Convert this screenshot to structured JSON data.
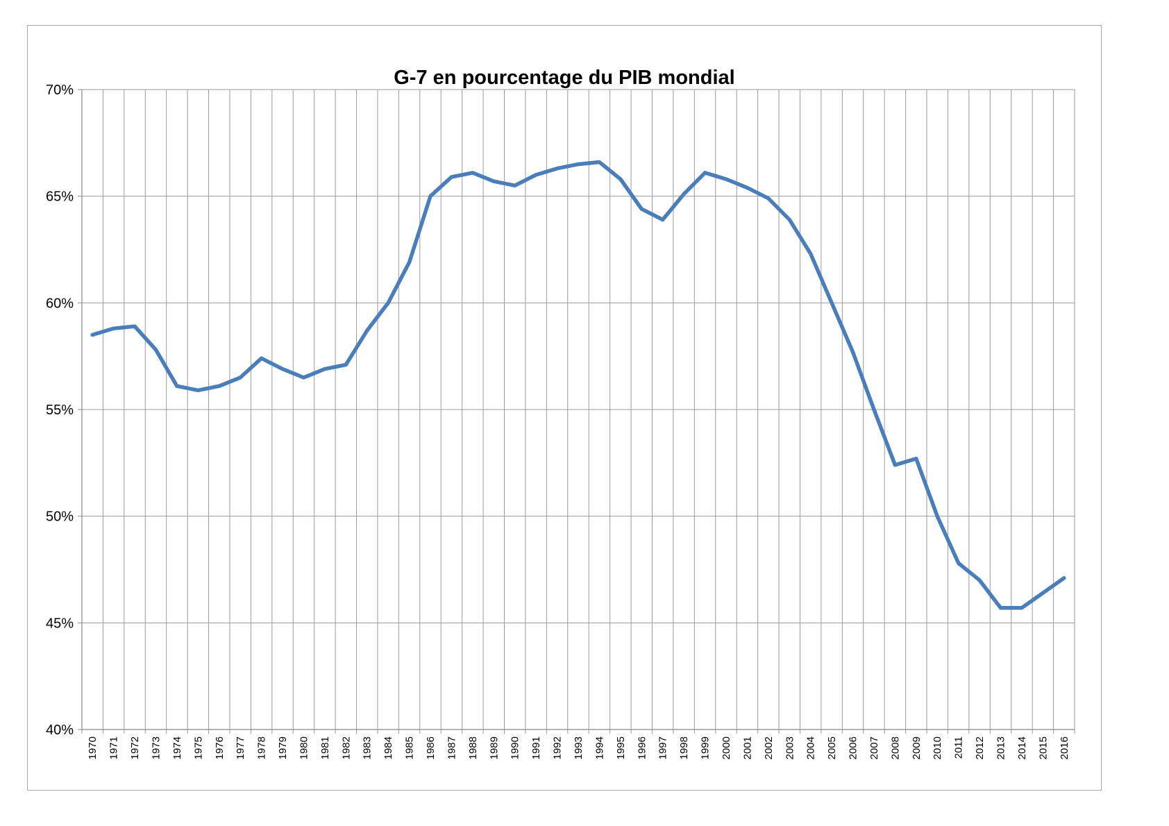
{
  "chart_data": {
    "type": "line",
    "title": "G-7 en pourcentage du PIB mondial",
    "xlabel": "",
    "ylabel": "",
    "ylim": [
      40,
      70
    ],
    "yticks": [
      40,
      45,
      50,
      55,
      60,
      65,
      70
    ],
    "ytick_labels": [
      "40%",
      "45%",
      "50%",
      "55%",
      "60%",
      "65%",
      "70%"
    ],
    "grid": true,
    "legend": "none",
    "line_color": "#4a7ebb",
    "categories": [
      "1970",
      "1971",
      "1972",
      "1973",
      "1974",
      "1975",
      "1976",
      "1977",
      "1978",
      "1979",
      "1980",
      "1981",
      "1982",
      "1983",
      "1984",
      "1985",
      "1986",
      "1987",
      "1988",
      "1989",
      "1990",
      "1991",
      "1992",
      "1993",
      "1994",
      "1995",
      "1996",
      "1997",
      "1998",
      "1999",
      "2000",
      "2001",
      "2002",
      "2003",
      "2004",
      "2005",
      "2006",
      "2007",
      "2008",
      "2009",
      "2010",
      "2011",
      "2012",
      "2013",
      "2014",
      "2015",
      "2016"
    ],
    "series": [
      {
        "values": [
          58.5,
          58.8,
          58.9,
          57.8,
          56.1,
          55.9,
          56.1,
          56.5,
          57.4,
          56.9,
          56.5,
          56.9,
          57.1,
          58.7,
          60.0,
          61.9,
          65.0,
          65.9,
          66.1,
          65.7,
          65.5,
          66.0,
          66.3,
          66.5,
          66.6,
          65.8,
          64.4,
          63.9,
          65.1,
          66.1,
          65.8,
          65.4,
          64.9,
          63.9,
          62.3,
          60.0,
          57.7,
          55.0,
          52.4,
          52.7,
          50.0,
          47.8,
          47.0,
          45.7,
          45.7,
          46.4,
          47.1
        ]
      }
    ]
  }
}
